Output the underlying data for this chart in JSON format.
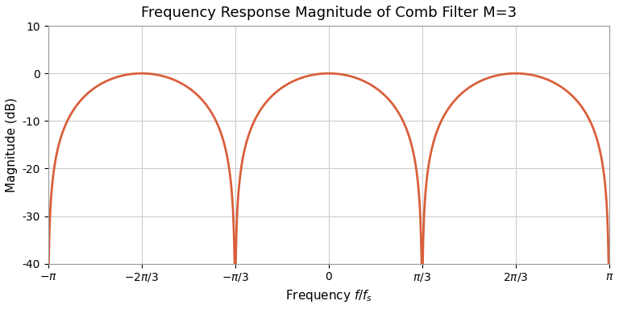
{
  "title": "Frequency Response Magnitude of Comb Filter M=3",
  "xlabel": "Frequency $f/f_s$",
  "ylabel": "Magnitude (dB)",
  "M": 3,
  "ylim": [
    -40,
    10
  ],
  "line_color": "#D95F3B",
  "line_width": 2.0,
  "background_color": "#ffffff",
  "grid_color": "#cccccc",
  "ytick_values": [
    -40,
    -30,
    -20,
    -10,
    0,
    10
  ],
  "title_fontsize": 13,
  "label_fontsize": 11,
  "tick_fontsize": 10
}
